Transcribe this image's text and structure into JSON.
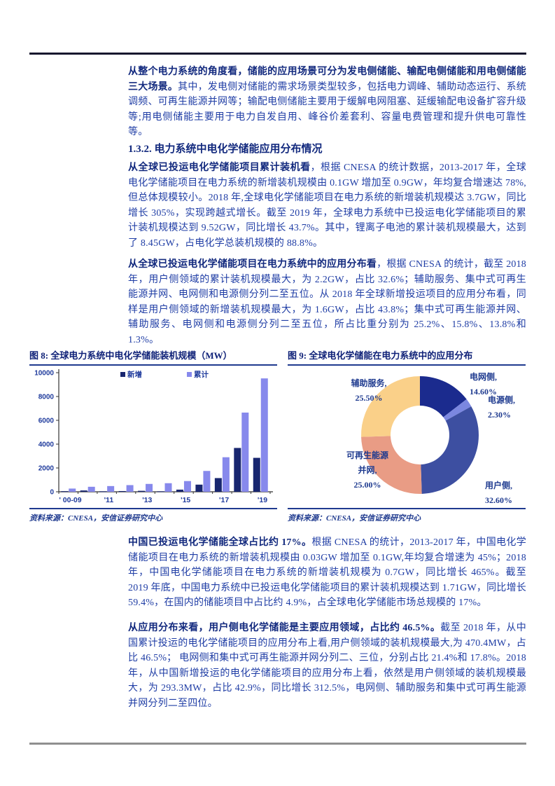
{
  "page": {
    "heading": "1.3.2. 电力系统中电化学储能应用分布情况",
    "paragraphs": [
      {
        "lead": "从整个电力系统的角度看，储能的应用场景可分为发电侧储能、输配电侧储能和用电侧储能三大场景。",
        "body": "其中，发电侧对储能的需求场景类型较多，包括电力调峰、辅助动态运行、系统调频、可再生能源并网等；输配电侧储能主要用于缓解电网阻塞、延缓输配电设备扩容升级等;用电侧储能主要用于电力自发自用、峰谷价差套利、容量电费管理和提升供电可靠性等。"
      },
      {
        "lead": "从全球已投运电化学储能项目累计装机看",
        "body": "，根据 CNESA 的统计数据，2013-2017 年，全球电化学储能项目在电力系统的新增装机规模由 0.1GW 增加至 0.9GW，年均复合增速达 78%,但总体规模较小。2018 年,全球电化学储能项目在电力系统的新增装机规模达 3.7GW，同比增长 305%，实现跨越式增长。截至 2019 年，全球电力系统中已投运电化学储能项目的累计装机规模达到 9.52GW，同比增长 43.7%。其中，锂离子电池的累计装机规模最大，达到了 8.45GW，占电化学总装机规模的 88.8%。"
      },
      {
        "lead": "从全球已投运电化学储能项目在电力系统中的应用分布看",
        "body": "，根据 CNESA 的统计，截至 2018 年，用户侧领域的累计装机规模最大，为 2.2GW，占比 32.6%；辅助服务、集中式可再生能源并网、电网侧和电源侧分列二至五位。从 2018 年全球新增投运项目的应用分布看，同样是用户侧领域的新增装机规模最大，为 1.6GW，占比 43.8%；集中式可再生能源并网、辅助服务、电网侧和电源侧分列二至五位，所占比重分别为 25.2%、15.8%、13.8%和 1.3%。"
      },
      {
        "lead": "中国已投运电化学储能全球占比约 17%。",
        "body": "根据 CNESA 的统计，2013-2017 年，中国电化学储能项目在电力系统的新增装机规模由 0.03GW 增加至 0.1GW,年均复合增速为 45%；2018 年，中国电化学储能项目在电力系统的新增装机规模为 0.7GW，同比增长 465%。截至 2019 年底，中国电力系统中已投运电化学储能项目的累计装机规模达到 1.71GW，同比增长 59.4%，在国内的储能项目中占比约 4.9%，占全球电化学储能市场总规模的 17%。"
      },
      {
        "lead": "从应用分布来看，用户侧电化学储能是主要应用领域，占比约 46.5%。",
        "body": "截至 2018 年，从中国累计投运的电化学储能项目的应用分布上看,用户侧领域的装机规模最大,为 470.4MW，占比 46.5%； 电网侧和集中式可再生能源并网分列二、三位，分别占比 21.4%和 17.8%。2018 年，从中国新增投运的电化学储能项目的应用分布上看，依然是用户侧领域的装机规模最大，为 293.3MW，占比 42.9%，同比增长 312.5%，电网侧、辅助服务和集中式可再生能源并网分列二至四位。"
      }
    ],
    "figures": [
      {
        "title": "图 8: 全球电力系统中电化学储能装机规模（MW）",
        "source": "资料来源：CNESA，安信证券研究中心"
      },
      {
        "title": "图 9: 全球电化学储能在电力系统中的应用分布",
        "source": "资料来源：CNESA，安信证券研究中心"
      }
    ]
  },
  "chart_data": [
    {
      "type": "bar",
      "title": "全球电力系统中电化学储能装机规模（MW）",
      "categories": [
        "'00-09",
        "'10",
        "'11",
        "'12",
        "'13",
        "'14",
        "'15",
        "'16",
        "'17",
        "'18",
        "'19"
      ],
      "x_tick_labels": [
        "' 00-09",
        "'11",
        "'13",
        "'15",
        "'17",
        "'19"
      ],
      "series": [
        {
          "name": "新增",
          "color": "#18266f",
          "values": [
            50,
            110,
            40,
            60,
            80,
            40,
            180,
            600,
            1150,
            3680,
            2850
          ]
        },
        {
          "name": "累计",
          "color": "#8789ec",
          "values": [
            270,
            420,
            480,
            560,
            660,
            720,
            900,
            1750,
            2900,
            6650,
            9520
          ]
        }
      ],
      "ylabel": "MW",
      "ylim": [
        0,
        10000
      ],
      "yticks": [
        0,
        2000,
        4000,
        6000,
        8000,
        10000
      ],
      "grid": false,
      "legend_position": "top"
    },
    {
      "type": "pie",
      "subtype": "donut",
      "title": "全球电化学储能在电力系统中的应用分布",
      "slices": [
        {
          "name": "电网侧",
          "value": 14.6,
          "color": "#1b2b8e",
          "label_lines": [
            "电网侧,",
            "14.60%"
          ]
        },
        {
          "name": "电源侧",
          "value": 2.3,
          "color": "#7b87e0",
          "label_lines": [
            "电源侧,",
            "2.30%"
          ]
        },
        {
          "name": "用户侧",
          "value": 32.6,
          "color": "#3d4fa1",
          "label_lines": [
            "用户侧,",
            "32.60%"
          ]
        },
        {
          "name": "可再生能源并网",
          "value": 25.0,
          "color": "#e99c85",
          "label_lines": [
            "可再生能源",
            "并网,",
            "25.00%"
          ]
        },
        {
          "name": "辅助服务",
          "value": 25.5,
          "color": "#fad089",
          "label_lines": [
            "辅助服务,",
            "25.50%"
          ]
        }
      ],
      "start_angle_deg": -90,
      "direction": "clockwise"
    }
  ]
}
